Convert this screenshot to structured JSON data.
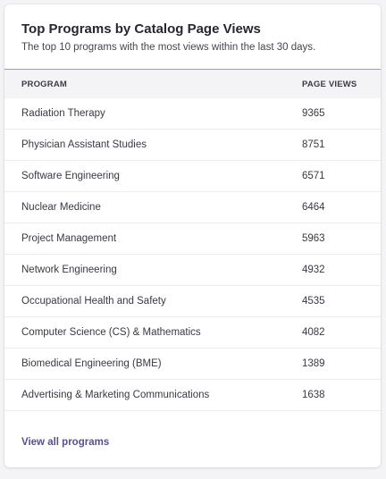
{
  "card": {
    "title": "Top Programs by Catalog Page Views",
    "subtitle": "The top 10 programs with the most views within the last 30 days."
  },
  "table": {
    "headers": {
      "program": "PROGRAM",
      "views": "PAGE VIEWS"
    },
    "rows": [
      {
        "program": "Radiation Therapy",
        "views": "9365"
      },
      {
        "program": "Physician Assistant Studies",
        "views": "8751"
      },
      {
        "program": "Software Engineering",
        "views": "6571"
      },
      {
        "program": "Nuclear Medicine",
        "views": "6464"
      },
      {
        "program": "Project Management",
        "views": "5963"
      },
      {
        "program": "Network Engineering",
        "views": "4932"
      },
      {
        "program": "Occupational Health and Safety",
        "views": "4535"
      },
      {
        "program": "Computer Science (CS) & Mathematics",
        "views": "4082"
      },
      {
        "program": "Biomedical Engineering (BME)",
        "views": "1389"
      },
      {
        "program": "Advertising & Marketing Communications",
        "views": "1638"
      }
    ]
  },
  "footer": {
    "link_label": "View all programs"
  },
  "colors": {
    "link": "#5a4f8d",
    "header_divider": "#9a9ab4",
    "table_header_bg": "#f4f4f7"
  }
}
